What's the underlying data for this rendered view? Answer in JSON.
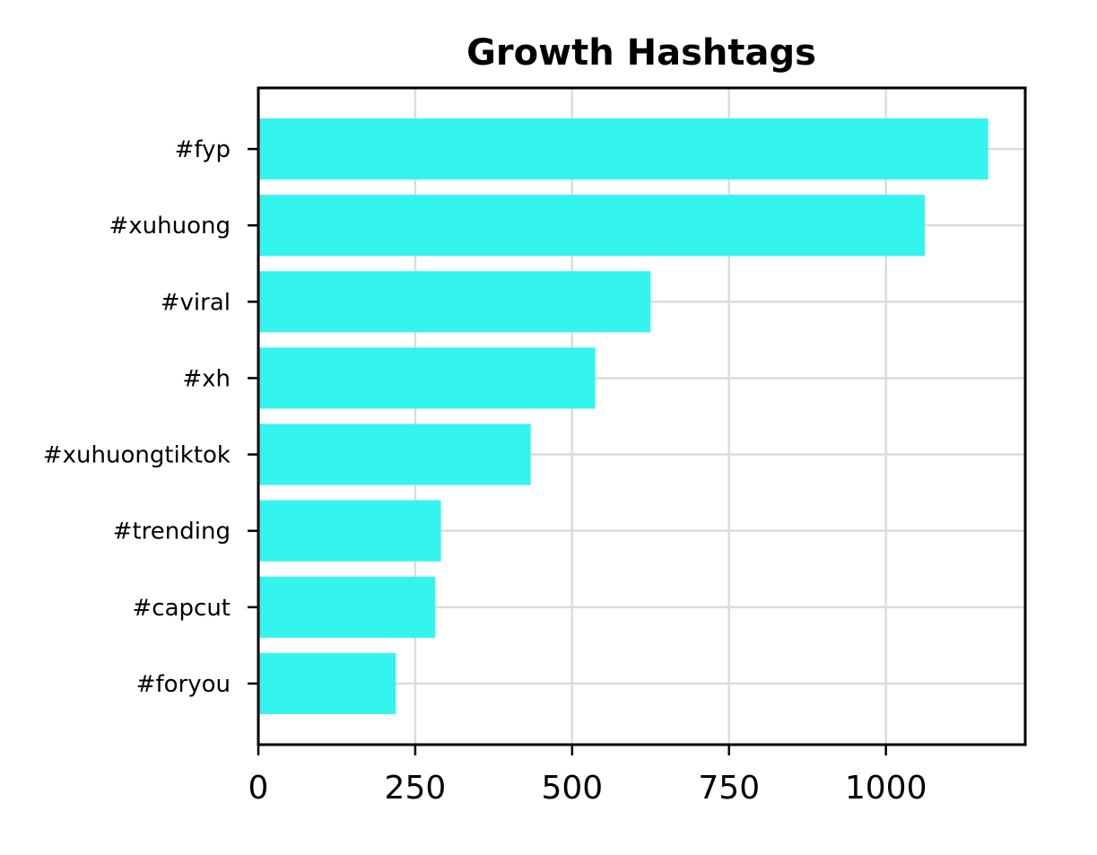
{
  "chart_data": {
    "type": "bar",
    "orientation": "horizontal",
    "title": "Growth Hashtags",
    "xlabel": "",
    "ylabel": "",
    "categories": [
      "#fyp",
      "#xuhuong",
      "#viral",
      "#xh",
      "#xuhuongtiktok",
      "#trending",
      "#capcut",
      "#foryou"
    ],
    "values": [
      1163,
      1062,
      625,
      537,
      434,
      291,
      282,
      219
    ],
    "xlim": [
      0,
      1222
    ],
    "xticks": [
      0,
      250,
      500,
      750,
      1000
    ],
    "xtick_labels": [
      "0",
      "250",
      "500",
      "750",
      "1000"
    ],
    "grid": true,
    "bar_color": "#33f5ee"
  }
}
